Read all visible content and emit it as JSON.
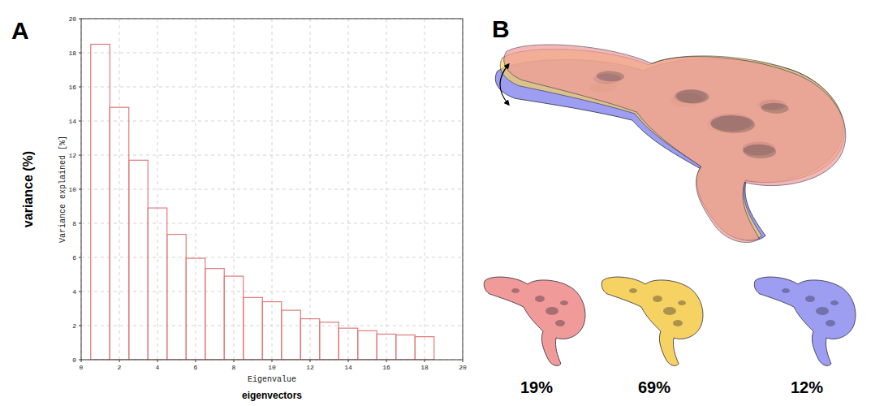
{
  "chart_data": [
    {
      "type": "bar",
      "panel": "A",
      "y_title": "variance (%)",
      "y_label": "Variance explained [%]",
      "x_label": "Eigenvalue",
      "x_title": "eigenvectors",
      "x": [
        1,
        2,
        3,
        4,
        5,
        6,
        7,
        8,
        9,
        10,
        11,
        12,
        13,
        14,
        15,
        16,
        17,
        18
      ],
      "values": [
        18.5,
        14.8,
        11.7,
        8.9,
        7.35,
        5.95,
        5.35,
        4.9,
        3.65,
        3.4,
        2.9,
        2.4,
        2.2,
        1.85,
        1.7,
        1.5,
        1.45,
        1.35
      ],
      "color": "#e07a7a",
      "xlim": [
        0,
        20
      ],
      "xticks": [
        0,
        2,
        4,
        6,
        8,
        10,
        12,
        14,
        16,
        18,
        20
      ],
      "ylim": [
        0,
        20
      ],
      "yticks": [
        0,
        2,
        4,
        6,
        8,
        10,
        12,
        14,
        16,
        18,
        20
      ],
      "grid": true
    },
    {
      "type": "pictogram",
      "panel": "B",
      "values": [
        19,
        69,
        12
      ],
      "value_labels": [
        "19%",
        "69%",
        "12%"
      ],
      "colors": [
        "#f09a9a",
        "#f6d262",
        "#9d9df2"
      ],
      "data_labels": true
    }
  ]
}
